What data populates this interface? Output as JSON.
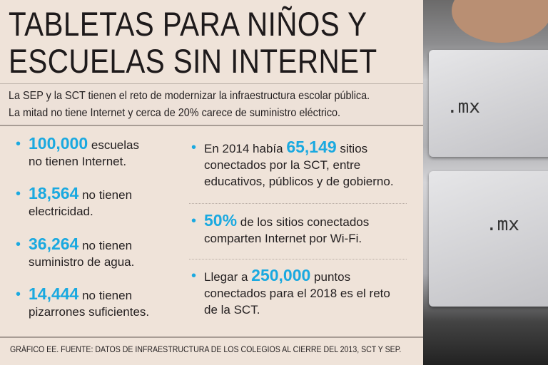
{
  "title": {
    "line1": "TABLETAS PARA NIÑOS Y",
    "line2": "ESCUELAS SIN INTERNET"
  },
  "intro": {
    "line1": "La SEP y la SCT tienen el reto de modernizar la infraestructura escolar pública.",
    "line2": "La mitad no tiene Internet y cerca de 20% carece de suministro eléctrico."
  },
  "left": [
    {
      "num": "100,000",
      "t1": " escuelas",
      "t2": "no tienen Internet."
    },
    {
      "num": "18,564",
      "t1": " no tienen",
      "t2": "electricidad."
    },
    {
      "num": "36,264",
      "t1": " no tienen",
      "t2": "suministro de agua."
    },
    {
      "num": "14,444",
      "t1": " no tienen",
      "t2": "pizarrones suficientes."
    }
  ],
  "right": [
    {
      "pre": "En 2014 había ",
      "num": "65,149",
      "t1": " sitios",
      "t2": "conectados por la SCT, entre",
      "t3": "educativos, públicos y de gobierno."
    },
    {
      "pre": "",
      "num": "50%",
      "t1": " de los sitios conectados",
      "t2": "comparten Internet por Wi-Fi.",
      "t3": ""
    },
    {
      "pre": "Llegar a ",
      "num": "250,000",
      "t1": " puntos",
      "t2": "conectados para el 2018 es el reto",
      "t3": "de la SCT."
    }
  ],
  "footer": "GRÁFICO EE. FUENTE: DATOS DE INFRAESTRUCTURA DE LOS COLEGIOS AL CIERRE DEL 2013, SCT Y SEP.",
  "photo": {
    "label1": ".mx",
    "label2": ".mx"
  },
  "colors": {
    "accent": "#1aa9e0",
    "background": "#efe3d9"
  }
}
